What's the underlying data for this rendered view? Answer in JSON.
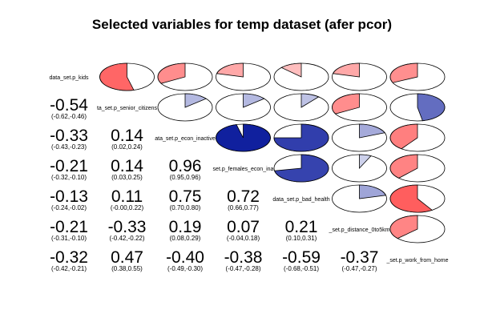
{
  "chart_data": {
    "type": "heatmap",
    "title": "Selected variables for temp dataset (afer pcor)",
    "variables": [
      "data_set.p_kids",
      "ta_set.p_senior_citizens",
      "ata_set.p_econ_inactive",
      "set.p_females_econ_ina",
      "data_set.p_bad_health",
      "_set.p_distance_0to5km",
      "_set.p_work_from_home"
    ],
    "lower_values": [
      {
        "row": 1,
        "col": 0,
        "r": "-0.54",
        "ci": "(-0.62,-0.46)"
      },
      {
        "row": 2,
        "col": 0,
        "r": "-0.33",
        "ci": "(-0.43,-0.23)"
      },
      {
        "row": 2,
        "col": 1,
        "r": "0.14",
        "ci": "(0.02,0.24)"
      },
      {
        "row": 3,
        "col": 0,
        "r": "-0.21",
        "ci": "(-0.32,-0.10)"
      },
      {
        "row": 3,
        "col": 1,
        "r": "0.14",
        "ci": "(0.03,0.25)"
      },
      {
        "row": 3,
        "col": 2,
        "r": "0.96",
        "ci": "(0.95,0.96)"
      },
      {
        "row": 4,
        "col": 0,
        "r": "-0.13",
        "ci": "(-0.24,-0.02)"
      },
      {
        "row": 4,
        "col": 1,
        "r": "0.11",
        "ci": "(-0.00,0.22)"
      },
      {
        "row": 4,
        "col": 2,
        "r": "0.75",
        "ci": "(0.70,0.80)"
      },
      {
        "row": 4,
        "col": 3,
        "r": "0.72",
        "ci": "(0.66,0.77)"
      },
      {
        "row": 5,
        "col": 0,
        "r": "-0.21",
        "ci": "(-0.31,-0.10)"
      },
      {
        "row": 5,
        "col": 1,
        "r": "-0.33",
        "ci": "(-0.42,-0.22)"
      },
      {
        "row": 5,
        "col": 2,
        "r": "0.19",
        "ci": "(0.08,0.29)"
      },
      {
        "row": 5,
        "col": 3,
        "r": "0.07",
        "ci": "(-0.04,0.18)"
      },
      {
        "row": 5,
        "col": 4,
        "r": "0.21",
        "ci": "(0.10,0.31)"
      },
      {
        "row": 6,
        "col": 0,
        "r": "-0.32",
        "ci": "(-0.42,-0.21)"
      },
      {
        "row": 6,
        "col": 1,
        "r": "0.47",
        "ci": "(0.38,0.55)"
      },
      {
        "row": 6,
        "col": 2,
        "r": "-0.40",
        "ci": "(-0.49,-0.30)"
      },
      {
        "row": 6,
        "col": 3,
        "r": "-0.38",
        "ci": "(-0.47,-0.28)"
      },
      {
        "row": 6,
        "col": 4,
        "r": "-0.59",
        "ci": "(-0.68,-0.51)"
      },
      {
        "row": 6,
        "col": 5,
        "r": "-0.37",
        "ci": "(-0.47,-0.27)"
      }
    ],
    "upper_pies": [
      {
        "row": 0,
        "col": 1,
        "value": -0.54
      },
      {
        "row": 0,
        "col": 2,
        "value": -0.33
      },
      {
        "row": 0,
        "col": 3,
        "value": -0.21
      },
      {
        "row": 0,
        "col": 4,
        "value": -0.13
      },
      {
        "row": 0,
        "col": 5,
        "value": -0.21
      },
      {
        "row": 0,
        "col": 6,
        "value": -0.32
      },
      {
        "row": 1,
        "col": 2,
        "value": 0.14
      },
      {
        "row": 1,
        "col": 3,
        "value": 0.14
      },
      {
        "row": 1,
        "col": 4,
        "value": 0.11
      },
      {
        "row": 1,
        "col": 5,
        "value": -0.33
      },
      {
        "row": 1,
        "col": 6,
        "value": 0.47
      },
      {
        "row": 2,
        "col": 3,
        "value": 0.96
      },
      {
        "row": 2,
        "col": 4,
        "value": 0.75
      },
      {
        "row": 2,
        "col": 5,
        "value": 0.19
      },
      {
        "row": 2,
        "col": 6,
        "value": -0.4
      },
      {
        "row": 3,
        "col": 4,
        "value": 0.72
      },
      {
        "row": 3,
        "col": 5,
        "value": 0.07
      },
      {
        "row": 3,
        "col": 6,
        "value": -0.38
      },
      {
        "row": 4,
        "col": 5,
        "value": 0.21
      },
      {
        "row": 4,
        "col": 6,
        "value": -0.59
      },
      {
        "row": 5,
        "col": 6,
        "value": -0.37
      }
    ],
    "colors": {
      "positive": "#0a1a9c",
      "negative": "#ff2222",
      "outline": "#000000",
      "background": "#ffffff"
    }
  }
}
